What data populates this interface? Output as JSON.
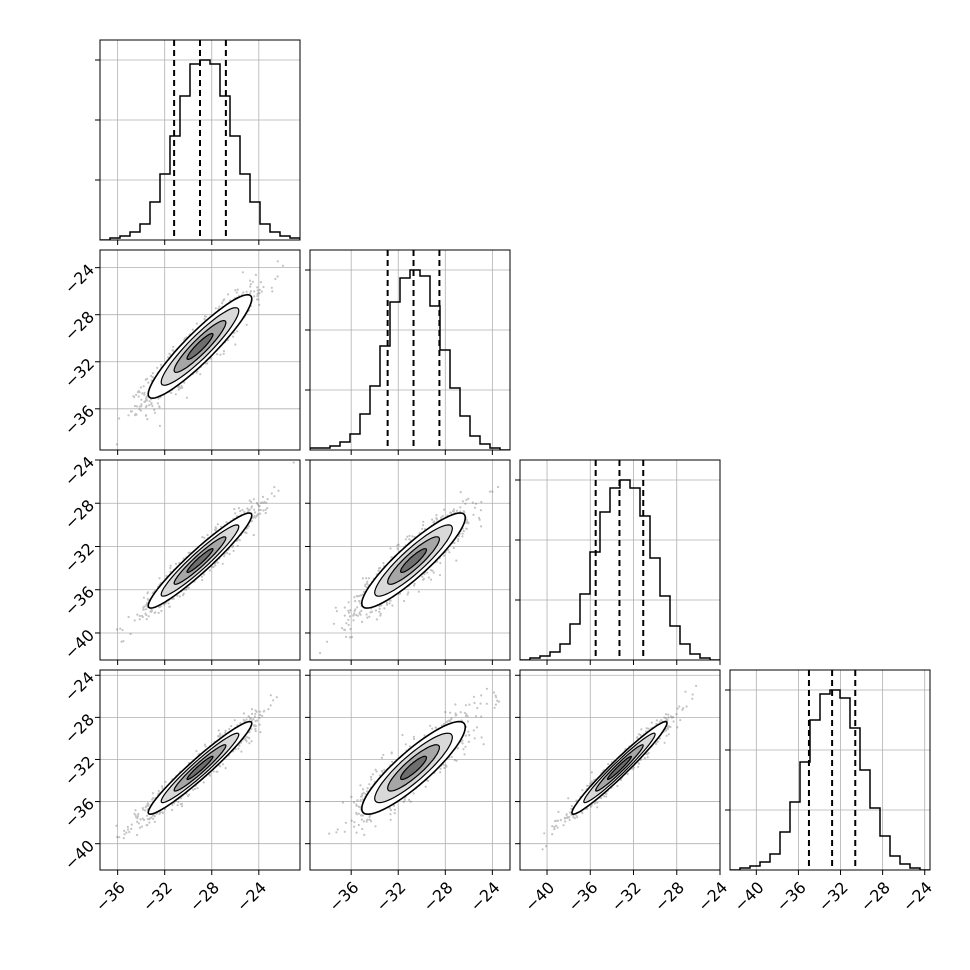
{
  "chart_data": {
    "type": "corner",
    "n_params": 4,
    "axes": [
      {
        "xlim": [
          -37.5,
          -20.5
        ],
        "ticks": [
          -36,
          -32,
          -28,
          -24
        ],
        "tick_labels": [
          "−36",
          "−32",
          "−28",
          "−24"
        ]
      },
      {
        "xlim": [
          -39.5,
          -22.5
        ],
        "ticks": [
          -36,
          -32,
          -28,
          -24
        ],
        "tick_labels": [
          "−36",
          "−32",
          "−28",
          "−24"
        ]
      },
      {
        "xlim": [
          -42.5,
          -24.0
        ],
        "ticks": [
          -40,
          -36,
          -32,
          -28,
          -24
        ],
        "tick_labels": [
          "−40",
          "−36",
          "−32",
          "−28",
          "−24"
        ]
      },
      {
        "xlim": [
          -42.5,
          -23.5
        ],
        "ticks": [
          -40,
          -36,
          -32,
          -28,
          -24
        ],
        "tick_labels": [
          "−40",
          "−36",
          "−32",
          "−28",
          "−24"
        ]
      }
    ],
    "y_axes": [
      null,
      {
        "ylim": [
          -39.5,
          -22.5
        ],
        "ticks": [
          -24,
          -28,
          -32,
          -36
        ],
        "tick_labels": [
          "−24",
          "−28",
          "−32",
          "−36"
        ]
      },
      {
        "ylim": [
          -42.5,
          -24.0
        ],
        "ticks": [
          -24,
          -28,
          -32,
          -36,
          -40
        ],
        "tick_labels": [
          "−24",
          "−28",
          "−32",
          "−36",
          "−40"
        ]
      },
      {
        "ylim": [
          -42.5,
          -23.5
        ],
        "ticks": [
          -24,
          -28,
          -32,
          -36,
          -40
        ],
        "tick_labels": [
          "−24",
          "−28",
          "−32",
          "−36",
          "−40"
        ]
      }
    ],
    "histograms": [
      {
        "bin_edges": [
          -37.5,
          -36.65,
          -35.8,
          -34.95,
          -34.1,
          -33.25,
          -32.4,
          -31.55,
          -30.7,
          -29.85,
          -29.0,
          -28.15,
          -27.3,
          -26.45,
          -25.6,
          -24.75,
          -23.9,
          -23.05,
          -22.2,
          -21.35,
          -20.5
        ],
        "counts": [
          0,
          1,
          2,
          4,
          8,
          19,
          33,
          52,
          72,
          88,
          90,
          88,
          72,
          52,
          33,
          19,
          8,
          4,
          2,
          1
        ],
        "quantiles": [
          -31.2,
          -29.0,
          -26.8
        ]
      },
      {
        "bin_edges": [
          -39.5,
          -38.65,
          -37.8,
          -36.95,
          -36.1,
          -35.25,
          -34.4,
          -33.55,
          -32.7,
          -31.85,
          -31.0,
          -30.15,
          -29.3,
          -28.45,
          -27.6,
          -26.75,
          -25.9,
          -25.05,
          -24.2,
          -23.35,
          -22.5
        ],
        "counts": [
          1,
          1,
          2,
          4,
          8,
          18,
          32,
          52,
          74,
          86,
          90,
          87,
          72,
          50,
          31,
          17,
          7,
          3,
          1,
          0
        ],
        "quantiles": [
          -32.9,
          -30.7,
          -28.5
        ]
      },
      {
        "bin_edges": [
          -42.5,
          -41.575,
          -40.65,
          -39.725,
          -38.8,
          -37.875,
          -36.95,
          -36.025,
          -35.1,
          -34.175,
          -33.25,
          -32.325,
          -31.4,
          -30.475,
          -29.55,
          -28.625,
          -27.7,
          -26.775,
          -25.85,
          -24.925,
          -24.0
        ],
        "counts": [
          0,
          1,
          2,
          4,
          8,
          18,
          33,
          54,
          74,
          86,
          90,
          86,
          72,
          51,
          32,
          17,
          8,
          3,
          1,
          0
        ],
        "quantiles": [
          -35.5,
          -33.3,
          -31.1
        ]
      },
      {
        "bin_edges": [
          -42.5,
          -41.55,
          -40.6,
          -39.65,
          -38.7,
          -37.75,
          -36.8,
          -35.85,
          -34.9,
          -33.95,
          -33.0,
          -32.05,
          -31.1,
          -30.15,
          -29.2,
          -28.25,
          -27.3,
          -26.35,
          -25.4,
          -24.45,
          -23.5
        ],
        "counts": [
          0,
          1,
          2,
          4,
          8,
          19,
          34,
          54,
          75,
          88,
          90,
          86,
          71,
          50,
          31,
          17,
          7,
          3,
          1,
          0
        ],
        "quantiles": [
          -35.0,
          -32.8,
          -30.6
        ]
      }
    ],
    "params": [
      {
        "mean": -29.0,
        "sd": 2.2
      },
      {
        "mean": -30.7,
        "sd": 2.2
      },
      {
        "mean": -33.3,
        "sd": 2.2
      },
      {
        "mean": -32.8,
        "sd": 2.2
      }
    ],
    "correlations": [
      [
        1.0,
        0.92,
        0.95,
        0.96
      ],
      [
        0.92,
        1.0,
        0.9,
        0.88
      ],
      [
        0.95,
        0.9,
        1.0,
        0.97
      ],
      [
        0.96,
        0.88,
        0.97,
        1.0
      ]
    ],
    "contour_levels_sigma": [
      0.5,
      1.0,
      1.5,
      2.0
    ],
    "grid": true,
    "colors": {
      "line": "#000000",
      "grid": "#b0b0b0",
      "points": "#555555",
      "fill_levels": [
        "#ffffff",
        "#d9d9d9",
        "#a6a6a6",
        "#6e6e6e",
        "#2e2e2e"
      ]
    }
  }
}
